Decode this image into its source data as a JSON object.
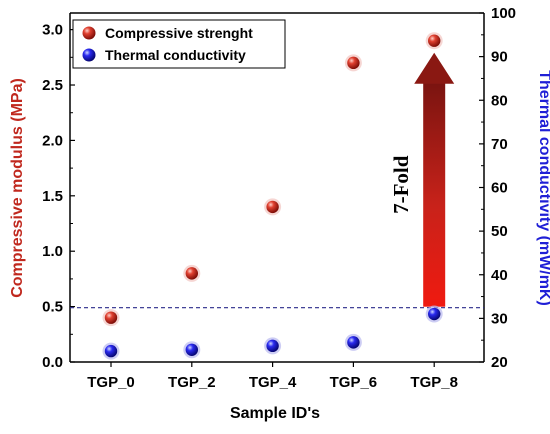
{
  "chart_data": {
    "type": "scatter",
    "categories": [
      "TGP_0",
      "TGP_2",
      "TGP_4",
      "TGP_6",
      "TGP_8"
    ],
    "xlabel": "Sample ID's",
    "series": [
      {
        "name": "Compressive strenght",
        "axis": "left",
        "values": [
          0.4,
          0.8,
          1.4,
          2.7,
          2.9
        ],
        "color": "#c0281e"
      },
      {
        "name": "Thermal conductivity",
        "axis": "right",
        "values": [
          22.5,
          22.8,
          23.7,
          24.5,
          31.0
        ],
        "color": "#1f1fd6"
      }
    ],
    "ylabel_left": "Compressive modulus (MPa)",
    "ylim_left": [
      0,
      3.15
    ],
    "yticks_left": [
      "0.0",
      "0.5",
      "1.0",
      "1.5",
      "2.0",
      "2.5",
      "3.0"
    ],
    "ylabel_right": "Thermal conductivity (mW/mK)",
    "ylim_right": [
      20,
      100
    ],
    "yticks_right": [
      "20",
      "30",
      "40",
      "50",
      "60",
      "70",
      "80",
      "90",
      "100"
    ],
    "reference_line": {
      "axis": "left",
      "value": 0.49,
      "color": "#2a2a8a"
    },
    "annotation": {
      "text": "7-Fold",
      "color": "#b3130b"
    },
    "left_axis_color": "#c0281e",
    "right_axis_color": "#1f1fd6",
    "legend_position": "top-left",
    "grid": false
  }
}
